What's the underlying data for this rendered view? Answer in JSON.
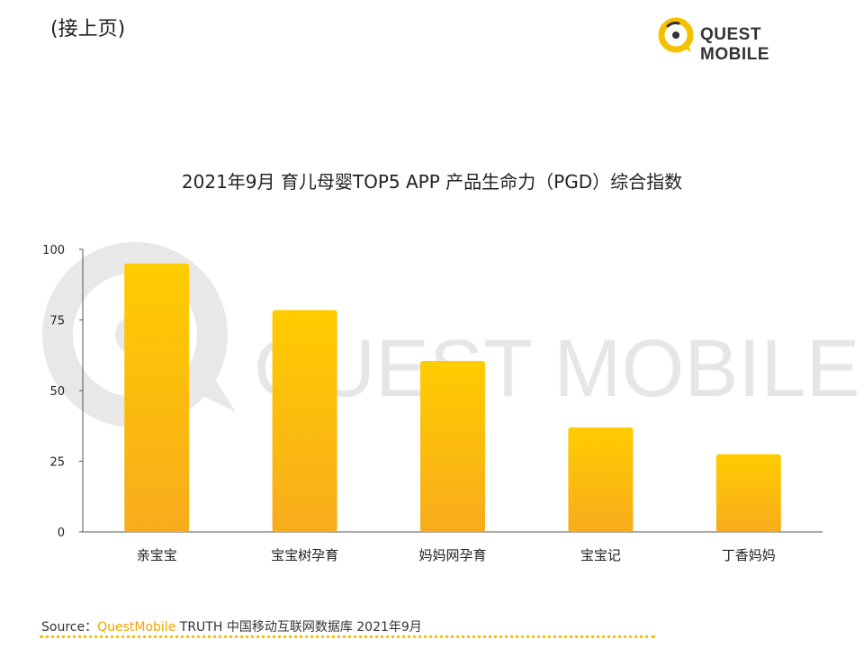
{
  "header": {
    "continued_label": "(接上页)",
    "logo_text": "QUEST MOBILE"
  },
  "watermark_text": "QUEST MOBILE",
  "colors": {
    "bar_top": "#ffcc00",
    "bar_bottom": "#f8ac1c",
    "axis": "#555555",
    "watermark": "#e8e8e8",
    "logo_ring": "#f5c000"
  },
  "chart_data": {
    "type": "bar",
    "title": "2021年9月 育儿母婴TOP5 APP 产品生命力（PGD）综合指数",
    "categories": [
      "亲宝宝",
      "宝宝树孕育",
      "妈妈网孕育",
      "宝宝记",
      "丁香妈妈"
    ],
    "values": [
      95,
      78.5,
      60.5,
      37,
      27.5
    ],
    "yticks": [
      0,
      25,
      50,
      75,
      100
    ],
    "ylim": [
      0,
      100
    ],
    "xlabel": "",
    "ylabel": "",
    "grid": false,
    "legend": "none"
  },
  "footer": {
    "source_label": "Source：",
    "source_brand": "QuestMobile",
    "source_rest": " TRUTH 中国移动互联网数据库 2021年9月"
  }
}
